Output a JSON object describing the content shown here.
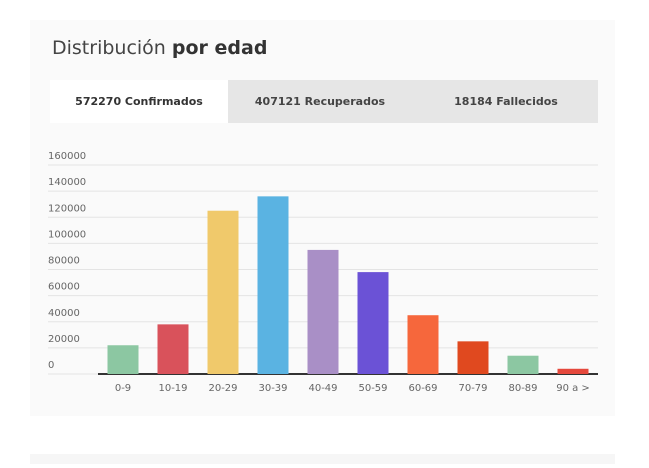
{
  "title": "Distribución",
  "title_bold": "por edad",
  "tabs": [
    "572270 Confirmados",
    "407121 Recuperados",
    "18184 Fallecidos"
  ],
  "chart_data": {
    "type": "bar",
    "categories": [
      "0-9",
      "10-19",
      "20-29",
      "30-39",
      "40-49",
      "50-59",
      "60-69",
      "70-79",
      "80-89",
      "90 a >"
    ],
    "values": [
      22000,
      38000,
      125000,
      136000,
      95000,
      78000,
      45000,
      25000,
      14000,
      4000
    ],
    "colors": [
      "#8cc7a2",
      "#d9525b",
      "#f0c96b",
      "#5ab3e2",
      "#a98fc6",
      "#6b52d6",
      "#f6673c",
      "#e0491f",
      "#8cc7a2",
      "#e5483c"
    ],
    "ylim": [
      0,
      160000
    ],
    "yticks": [
      0,
      20000,
      40000,
      60000,
      80000,
      100000,
      120000,
      140000,
      160000
    ],
    "grid": true
  }
}
